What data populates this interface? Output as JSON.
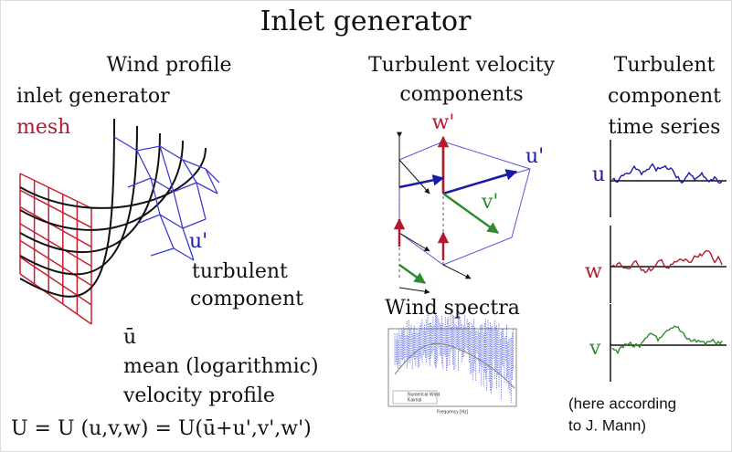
{
  "title": "Inlet generator",
  "wind_profile": {
    "heading": "Wind profile",
    "labels": [
      "inlet generator",
      "mesh",
      "u'",
      "turbulent",
      "component",
      "ū",
      "mean (logarithmic)",
      "velocity profile"
    ],
    "equation": "U = U (u,v,w) = U(ū+u',v',w')"
  },
  "velocity_components": {
    "heading": [
      "Turbulent velocity",
      "components"
    ],
    "labels": [
      "w'",
      "u'",
      "v'"
    ]
  },
  "spectra": {
    "heading": "Wind spectra",
    "legend": [
      "Numerical Wind",
      "Kaimal"
    ],
    "x_label": "Frequency [Hz]"
  },
  "time_series": {
    "heading": [
      "Turbulent",
      "component",
      "time series"
    ],
    "labels": [
      "u",
      "w",
      "v"
    ],
    "note": [
      "(here according",
      "to J. Mann)"
    ]
  }
}
